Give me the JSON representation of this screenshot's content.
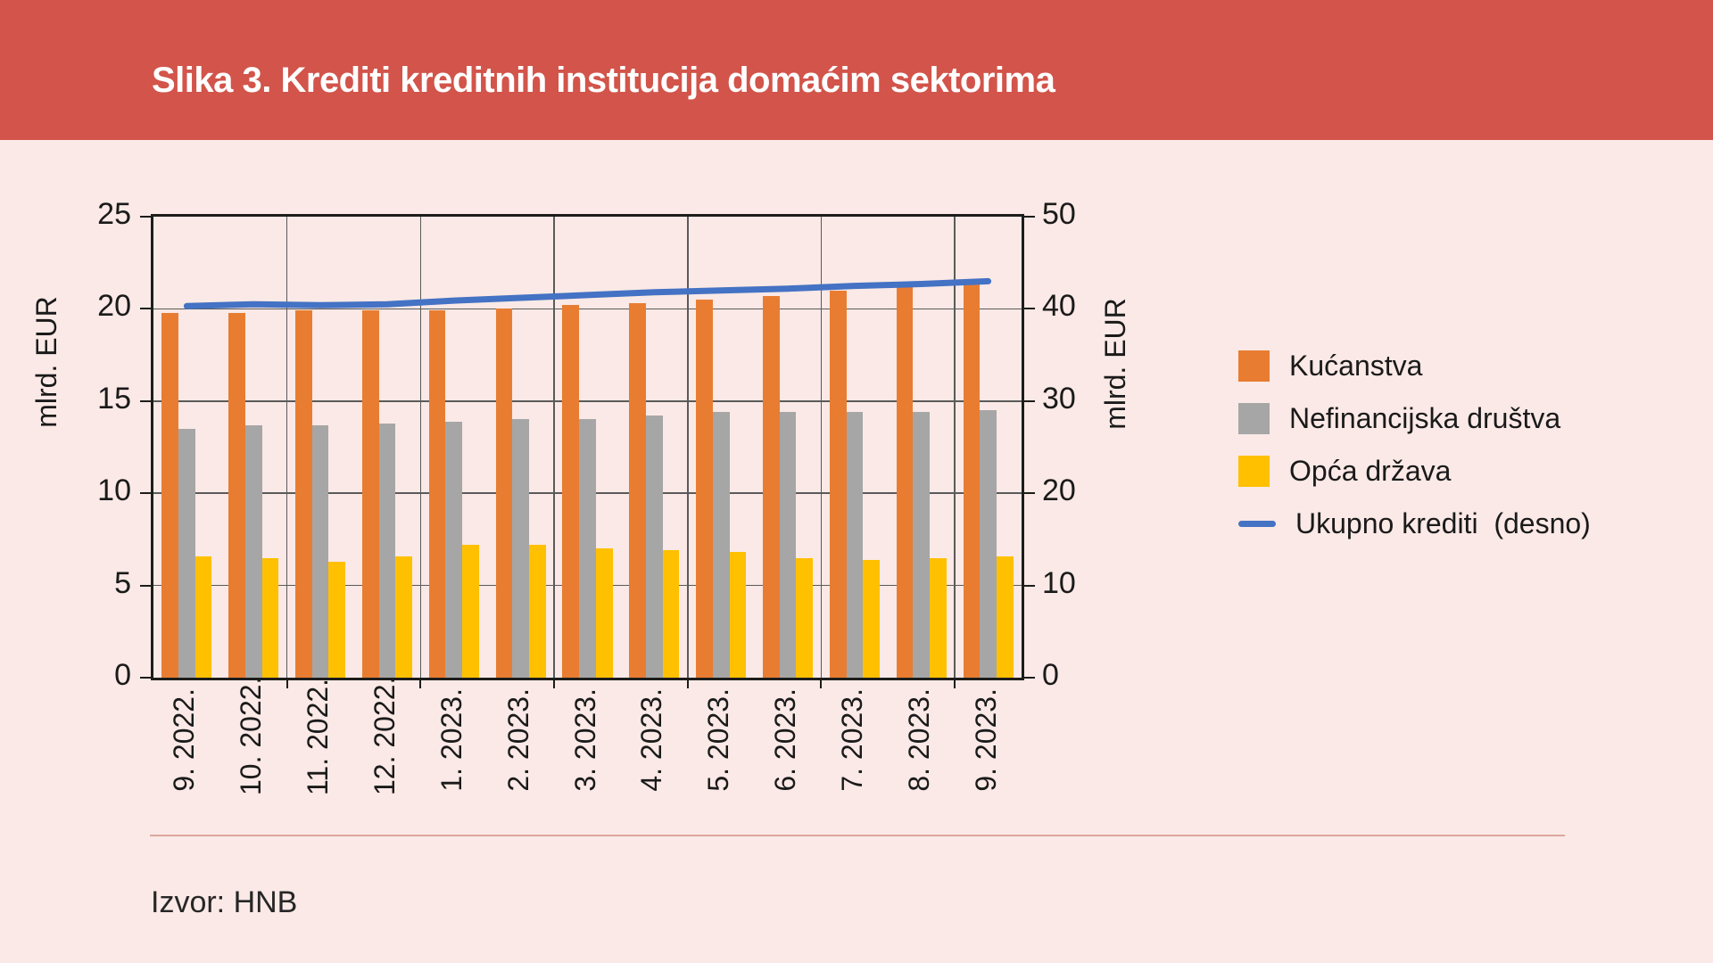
{
  "header": {
    "title": "Slika 3. Krediti kreditnih institucija domaćim sektorima"
  },
  "source": {
    "label": "Izvor: HNB"
  },
  "colors": {
    "header_bg": "#d2544a",
    "page_bg": "#fae9e6",
    "grid": "#5a5a5a",
    "plot_border": "#1d1d1b",
    "separator": "#dca79e"
  },
  "chart_data": {
    "type": "bar",
    "title": "Slika 3. Krediti kreditnih institucija domaćim sektorima",
    "categories": [
      "9. 2022.",
      "10. 2022.",
      "11. 2022.",
      "12. 2022.",
      "1. 2023.",
      "2. 2023.",
      "3. 2023.",
      "4. 2023.",
      "5. 2023.",
      "6. 2023.",
      "7. 2023.",
      "8. 2023.",
      "9. 2023."
    ],
    "series": [
      {
        "name": "Kućanstva",
        "type": "bar",
        "axis": "left",
        "color": "#e87d31",
        "values": [
          19.8,
          19.8,
          19.9,
          19.9,
          19.9,
          20.0,
          20.2,
          20.3,
          20.5,
          20.7,
          21.0,
          21.2,
          21.4
        ]
      },
      {
        "name": "Nefinancijska društva",
        "type": "bar",
        "axis": "left",
        "color": "#a6a6a6",
        "values": [
          13.5,
          13.7,
          13.7,
          13.8,
          13.9,
          14.0,
          14.0,
          14.2,
          14.4,
          14.4,
          14.4,
          14.4,
          14.5
        ]
      },
      {
        "name": "Opća država",
        "type": "bar",
        "axis": "left",
        "color": "#ffc000",
        "values": [
          6.6,
          6.5,
          6.3,
          6.6,
          7.2,
          7.2,
          7.0,
          6.9,
          6.8,
          6.5,
          6.4,
          6.5,
          6.6
        ]
      },
      {
        "name": "Ukupno krediti  (desno)",
        "type": "line",
        "axis": "right",
        "color": "#4472c4",
        "values": [
          40.3,
          40.5,
          40.4,
          40.5,
          40.9,
          41.2,
          41.5,
          41.8,
          42.0,
          42.2,
          42.5,
          42.7,
          43.0
        ]
      }
    ],
    "left_axis": {
      "label": "mlrd. EUR",
      "min": 0,
      "max": 25,
      "ticks": [
        0,
        5,
        10,
        15,
        20,
        25
      ]
    },
    "right_axis": {
      "label": "mlrd. EUR",
      "min": 0,
      "max": 50,
      "ticks": [
        0,
        10,
        20,
        30,
        40,
        50
      ]
    },
    "grid": true,
    "legend_position": "right",
    "vertical_grid_every_n_categories": 2
  }
}
